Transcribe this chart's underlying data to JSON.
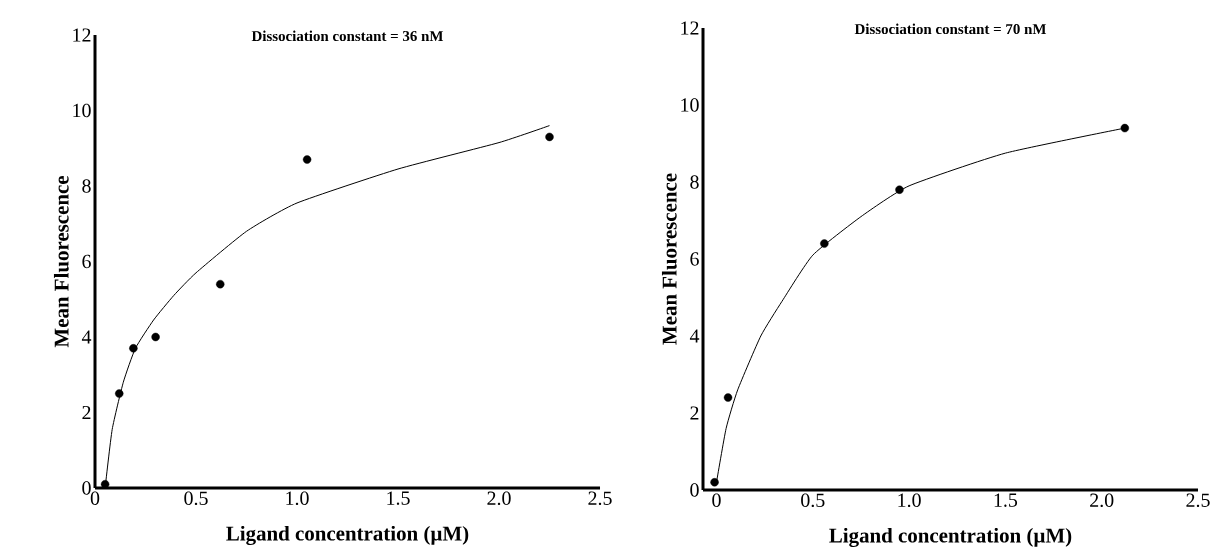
{
  "chart_data": [
    {
      "type": "scatter",
      "title": "Dissociation constant  =  36 nM",
      "xlabel": "Ligand concentration (µM)",
      "ylabel": "Mean Fluorescence",
      "xlim": [
        0,
        2.5
      ],
      "ylim": [
        0,
        12
      ],
      "xticks": [
        0,
        {
          "value": 0.5,
          "label": "0.5"
        },
        {
          "value": 1,
          "label": "1.0"
        },
        {
          "value": 1.5,
          "label": "1.5"
        },
        {
          "value": 2,
          "label": "2.0"
        },
        {
          "value": 2.5,
          "label": "2.5"
        }
      ],
      "yticks": [
        0,
        2,
        4,
        6,
        8,
        10,
        12
      ],
      "series": [
        {
          "marker": "circle",
          "color": "#000000",
          "x": [
            0.05,
            0.12,
            0.19,
            0.3,
            0.62,
            1.05,
            2.25
          ],
          "values": [
            0.1,
            2.5,
            3.7,
            4.0,
            5.4,
            8.7,
            9.3
          ]
        },
        {
          "type": "line",
          "marker": "none",
          "color": "#000000",
          "x": [
            0.05,
            0.085,
            0.14,
            0.2,
            0.29,
            0.39,
            0.5,
            0.75,
            1.0,
            1.5,
            2.0,
            2.25
          ],
          "values": [
            0.0,
            1.55,
            2.8,
            3.7,
            4.45,
            5.1,
            5.7,
            6.8,
            7.55,
            8.45,
            9.15,
            9.6
          ]
        }
      ]
    },
    {
      "type": "scatter",
      "title": "Dissociation constant  =  70 nM",
      "xlabel": "Ligand concentration (µM)",
      "ylabel": "Mean Fluorescence",
      "xlim": [
        -0.07,
        2.5
      ],
      "ylim": [
        0,
        12
      ],
      "xticks": [
        0,
        {
          "value": 0.5,
          "label": "0.5"
        },
        {
          "value": 1,
          "label": "1.0"
        },
        {
          "value": 1.5,
          "label": "1.5"
        },
        {
          "value": 2,
          "label": "2.0"
        },
        {
          "value": 2.5,
          "label": "2.5"
        }
      ],
      "yticks": [
        0,
        2,
        4,
        6,
        8,
        10,
        12
      ],
      "series": [
        {
          "marker": "circle",
          "color": "#000000",
          "x": [
            -0.01,
            0.06,
            0.56,
            0.95,
            2.12
          ],
          "values": [
            0.2,
            2.4,
            6.4,
            7.8,
            9.4
          ]
        },
        {
          "type": "line",
          "marker": "none",
          "color": "#000000",
          "x": [
            0.0,
            0.05,
            0.11,
            0.23,
            0.34,
            0.5,
            0.75,
            1.0,
            1.5,
            2.12
          ],
          "values": [
            0.2,
            1.6,
            2.6,
            4.0,
            4.9,
            6.1,
            7.1,
            7.9,
            8.75,
            9.4
          ]
        }
      ]
    }
  ]
}
